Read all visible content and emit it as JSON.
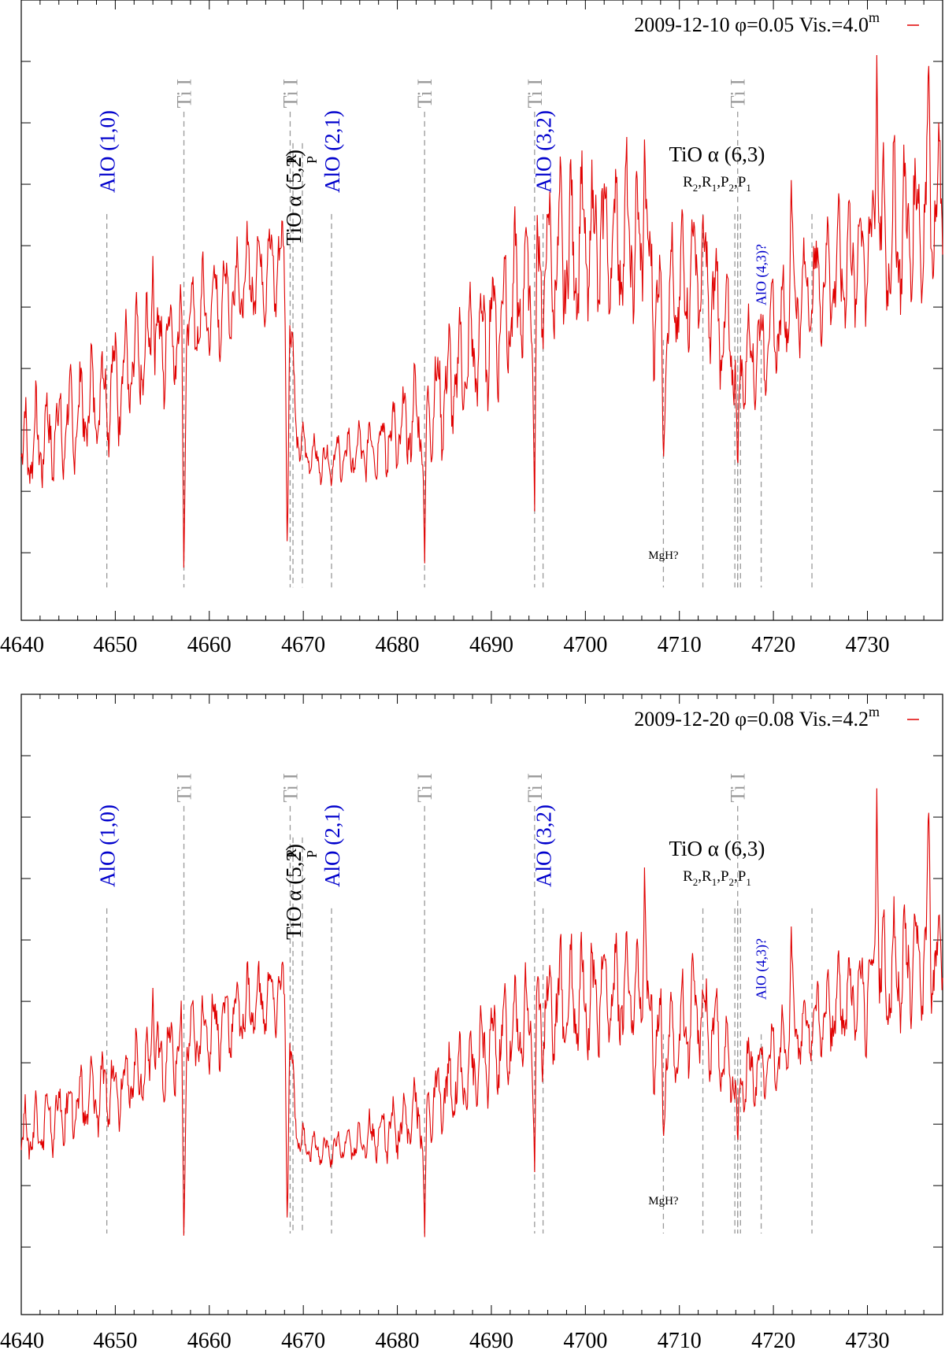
{
  "colors": {
    "spectrum": "#e00000",
    "marker": "#999999",
    "titanium_label": "#999999",
    "aluminum_label": "#0000cc",
    "text": "#000000",
    "frame": "#000000"
  },
  "chart_data": [
    {
      "type": "line",
      "legend": {
        "date": "2009-12-10",
        "phase": "φ=0.05",
        "vis": "Vis.=4.0",
        "vis_sup": "m",
        "placement": "top-right"
      },
      "xlim": [
        4640,
        4738
      ],
      "ylim": [
        0,
        1
      ],
      "xticks": [
        4640,
        4650,
        4660,
        4670,
        4680,
        4690,
        4700,
        4710,
        4720,
        4730
      ],
      "series": [
        {
          "name": "spectrum",
          "envelope": {
            "wavelength": [
              4640,
              4645,
              4650,
              4655,
              4660,
              4665,
              4668,
              4668.8,
              4669.5,
              4672,
              4676,
              4680,
              4685,
              4690,
              4695,
              4700,
              4705,
              4708.5,
              4712,
              4716.2,
              4719,
              4723,
              4728,
              4732,
              4736,
              4738
            ],
            "continuum": [
              0.27,
              0.32,
              0.4,
              0.47,
              0.53,
              0.6,
              0.62,
              0.44,
              0.28,
              0.25,
              0.27,
              0.3,
              0.38,
              0.5,
              0.6,
              0.66,
              0.66,
              0.52,
              0.62,
              0.43,
              0.47,
              0.56,
              0.62,
              0.66,
              0.7,
              0.72
            ],
            "amplitude": [
              0.1,
              0.11,
              0.12,
              0.12,
              0.11,
              0.11,
              0.1,
              0.08,
              0.05,
              0.04,
              0.06,
              0.09,
              0.12,
              0.15,
              0.17,
              0.18,
              0.17,
              0.15,
              0.15,
              0.12,
              0.1,
              0.11,
              0.14,
              0.18,
              0.16,
              0.15
            ]
          },
          "spikes": [
            {
              "x": 4657.3,
              "y": 0.04
            },
            {
              "x": 4668.3,
              "y": 0.07
            },
            {
              "x": 4682.9,
              "y": 0.05
            },
            {
              "x": 4694.6,
              "y": 0.16
            },
            {
              "x": 4708.3,
              "y": 0.24
            },
            {
              "x": 4716.2,
              "y": 0.21
            },
            {
              "x": 4654,
              "y": 0.63
            },
            {
              "x": 4706.3,
              "y": 0.86
            },
            {
              "x": 4721.9,
              "y": 0.77
            },
            {
              "x": 4731,
              "y": 1.0
            },
            {
              "x": 4736.5,
              "y": 1.0
            }
          ]
        }
      ],
      "annotations": {
        "ti": [
          {
            "x": 4657.3,
            "label": "Ti I"
          },
          {
            "x": 4668.6,
            "label": "Ti I"
          },
          {
            "x": 4682.9,
            "label": "Ti I"
          },
          {
            "x": 4694.6,
            "label": "Ti I"
          },
          {
            "x": 4716.2,
            "label": "Ti I"
          }
        ],
        "alo": [
          {
            "x": 4649.1,
            "label": "AlO (1,0)"
          },
          {
            "x": 4673.0,
            "label": "AlO (2,1)"
          },
          {
            "x": 4695.5,
            "label": "AlO (3,2)"
          }
        ],
        "alo43": {
          "x": 4718.7,
          "label": "AlO (4,3)?"
        },
        "mgh": {
          "x": 4708.3,
          "label": "MgH?"
        },
        "tio52": {
          "label": "TiO α (5,2)",
          "r": "R",
          "p": "P",
          "lines": [
            4668.9,
            4669.9
          ]
        },
        "tio63": {
          "label": "TiO α (6,3)",
          "sub": "R",
          "sub2": "2",
          "sub3": ",R",
          "sub4": "1",
          "sub5": ",P",
          "sub6": "2",
          "sub7": ",P",
          "sub8": "1",
          "lines": [
            4712.5,
            4715.9,
            4716.2,
            4716.5,
            4724.1
          ]
        }
      }
    },
    {
      "type": "line",
      "legend": {
        "date": "2009-12-20",
        "phase": "φ=0.08",
        "vis": "Vis.=4.2",
        "vis_sup": "m",
        "placement": "top-right"
      },
      "xlim": [
        4640,
        4738
      ],
      "ylim": [
        0,
        1
      ],
      "xticks": [
        4640,
        4650,
        4660,
        4670,
        4680,
        4690,
        4700,
        4710,
        4720,
        4730
      ],
      "series": [
        {
          "name": "spectrum",
          "envelope": {
            "wavelength": [
              4640,
              4645,
              4650,
              4655,
              4660,
              4665,
              4668,
              4668.8,
              4669.5,
              4672,
              4676,
              4680,
              4685,
              4690,
              4695,
              4700,
              4705,
              4708.5,
              4712,
              4716.2,
              4719,
              4723,
              4728,
              4732,
              4736,
              4738
            ],
            "continuum": [
              0.21,
              0.26,
              0.31,
              0.36,
              0.42,
              0.47,
              0.49,
              0.33,
              0.2,
              0.18,
              0.2,
              0.23,
              0.29,
              0.38,
              0.45,
              0.49,
              0.49,
              0.38,
              0.46,
              0.32,
              0.35,
              0.42,
              0.48,
              0.52,
              0.55,
              0.57
            ],
            "amplitude": [
              0.07,
              0.08,
              0.09,
              0.09,
              0.09,
              0.09,
              0.08,
              0.06,
              0.04,
              0.03,
              0.05,
              0.07,
              0.09,
              0.12,
              0.13,
              0.14,
              0.13,
              0.12,
              0.12,
              0.09,
              0.08,
              0.09,
              0.11,
              0.14,
              0.13,
              0.12
            ]
          },
          "spikes": [
            {
              "x": 4657.3,
              "y": 0.0
            },
            {
              "x": 4668.3,
              "y": 0.02
            },
            {
              "x": 4682.9,
              "y": 0.0
            },
            {
              "x": 4694.6,
              "y": 0.14
            },
            {
              "x": 4708.3,
              "y": 0.2
            },
            {
              "x": 4716.2,
              "y": 0.18
            },
            {
              "x": 4654,
              "y": 0.5
            },
            {
              "x": 4706.3,
              "y": 0.75
            },
            {
              "x": 4721.9,
              "y": 0.62
            },
            {
              "x": 4731,
              "y": 0.89
            },
            {
              "x": 4736.5,
              "y": 0.87
            }
          ]
        }
      ],
      "annotations": {
        "ti": [
          {
            "x": 4657.3,
            "label": "Ti I"
          },
          {
            "x": 4668.6,
            "label": "Ti I"
          },
          {
            "x": 4682.9,
            "label": "Ti I"
          },
          {
            "x": 4694.6,
            "label": "Ti I"
          },
          {
            "x": 4716.2,
            "label": "Ti I"
          }
        ],
        "alo": [
          {
            "x": 4649.1,
            "label": "AlO (1,0)"
          },
          {
            "x": 4673.0,
            "label": "AlO (2,1)"
          },
          {
            "x": 4695.5,
            "label": "AlO (3,2)"
          }
        ],
        "alo43": {
          "x": 4718.7,
          "label": "AlO (4,3)?"
        },
        "mgh": {
          "x": 4708.3,
          "label": "MgH?"
        },
        "tio52": {
          "label": "TiO α (5,2)",
          "r": "R",
          "p": "P",
          "lines": [
            4668.9,
            4669.9
          ]
        },
        "tio63": {
          "label": "TiO α (6,3)",
          "sub": "R",
          "sub2": "2",
          "sub3": ",R",
          "sub4": "1",
          "sub5": ",P",
          "sub6": "2",
          "sub7": ",P",
          "sub8": "1",
          "lines": [
            4712.5,
            4715.9,
            4716.2,
            4716.5,
            4724.1
          ]
        }
      }
    }
  ]
}
